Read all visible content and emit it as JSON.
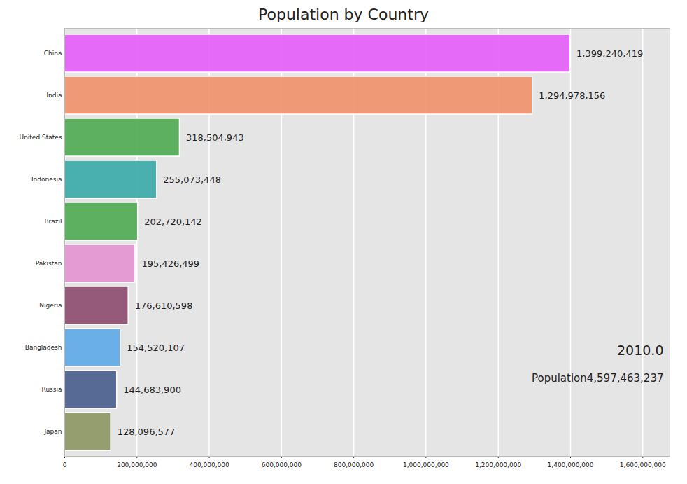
{
  "chart_data": {
    "type": "bar",
    "title": "Population by Country",
    "orientation": "horizontal",
    "categories": [
      "China",
      "India",
      "United States",
      "Indonesia",
      "Brazil",
      "Pakistan",
      "Nigeria",
      "Bangladesh",
      "Russia",
      "Japan"
    ],
    "values": [
      1399240419,
      1294978156,
      318504943,
      255073448,
      202720142,
      195426499,
      176610598,
      154520107,
      144683900,
      128096577
    ],
    "value_labels": [
      "1,399,240,419",
      "1,294,978,156",
      "318,504,943",
      "255,073,448",
      "202,720,142",
      "195,426,499",
      "176,610,598",
      "154,520,107",
      "144,683,900",
      "128,096,577"
    ],
    "colors": [
      "#e45cfa",
      "#f0906a",
      "#4caa50",
      "#38a9a9",
      "#4caa50",
      "#e392d2",
      "#8c4a6e",
      "#5ca8e8",
      "#475c8c",
      "#8c9660"
    ],
    "xlim": [
      0,
      1675000000
    ],
    "xticks": [
      0,
      {
        "value": 200000000,
        "label": "200,000,000"
      },
      {
        "value": 400000000,
        "label": "400,000,000"
      },
      {
        "value": 600000000,
        "label": "600,000,000"
      },
      {
        "value": 800000000,
        "label": "800,000,000"
      },
      {
        "value": 1000000000,
        "label": "1,000,000,000"
      },
      {
        "value": 1200000000,
        "label": "1,200,000,000"
      },
      {
        "value": 1400000000,
        "label": "1,400,000,000"
      },
      {
        "value": 1600000000,
        "label": "1,600,000,000"
      }
    ],
    "grid": true,
    "data_labels": true,
    "annotations": [
      "2010.0",
      "Population4,597,463,237"
    ]
  }
}
